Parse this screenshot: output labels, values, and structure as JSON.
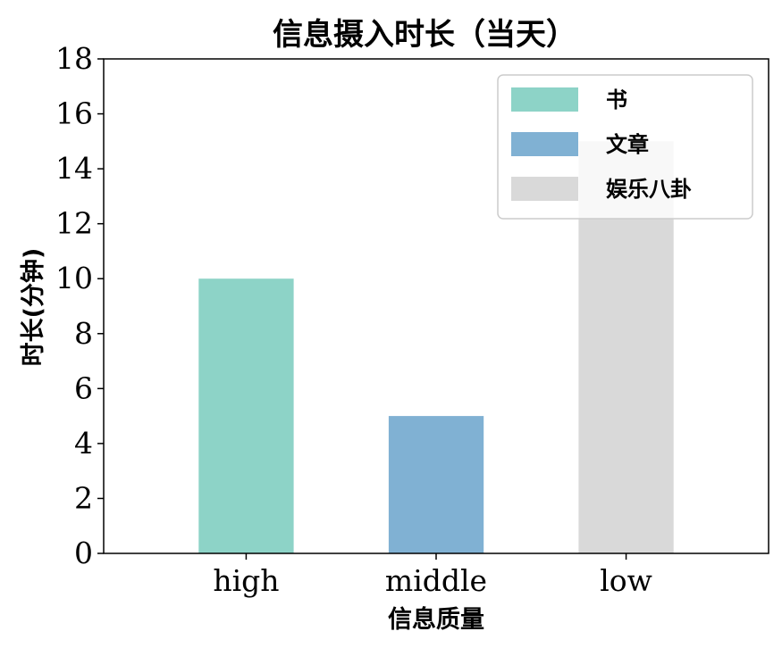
{
  "chart_data": {
    "type": "bar",
    "title": "信息摄入时长（当天）",
    "xlabel": "信息质量",
    "ylabel": "时长(分钟)",
    "categories": [
      "high",
      "middle",
      "low"
    ],
    "values": [
      10,
      5,
      15
    ],
    "series_names": [
      "书",
      "文章",
      "娱乐八卦"
    ],
    "colors": [
      "#8dd3c7",
      "#80b1d3",
      "#d9d9d9"
    ],
    "ylim": [
      0,
      18
    ],
    "yticks": [
      0,
      2,
      4,
      6,
      8,
      10,
      12,
      14,
      16,
      18
    ],
    "grid": false,
    "legend_position": "upper right"
  }
}
